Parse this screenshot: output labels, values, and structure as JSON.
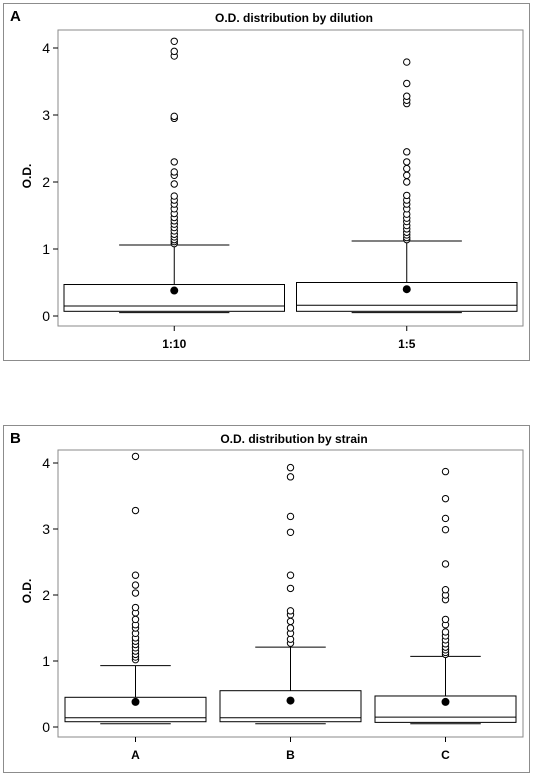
{
  "chart_data": [
    {
      "type": "boxplot",
      "panel_label": "A",
      "title": "O.D. distribution by dilution",
      "xlabel": "",
      "ylabel": "O.D.",
      "ylim": [
        0,
        4.2
      ],
      "yticks": [
        "0",
        "1",
        "2",
        "3",
        "4"
      ],
      "categories": [
        "1:10",
        "1:5"
      ],
      "boxes": [
        {
          "category": "1:10",
          "whisker_low": 0.05,
          "q1": 0.07,
          "median": 0.15,
          "q3": 0.47,
          "whisker_high": 1.06,
          "mean": 0.38,
          "outliers": [
            1.08,
            1.11,
            1.14,
            1.18,
            1.22,
            1.27,
            1.32,
            1.37,
            1.42,
            1.47,
            1.53,
            1.6,
            1.67,
            1.73,
            1.79,
            1.97,
            2.1,
            2.15,
            2.3,
            2.95,
            2.98,
            3.88,
            3.95,
            4.1
          ]
        },
        {
          "category": "1:5",
          "whisker_low": 0.05,
          "q1": 0.07,
          "median": 0.16,
          "q3": 0.5,
          "whisker_high": 1.12,
          "mean": 0.4,
          "outliers": [
            1.14,
            1.17,
            1.21,
            1.25,
            1.3,
            1.35,
            1.41,
            1.46,
            1.52,
            1.6,
            1.67,
            1.73,
            1.8,
            2.0,
            2.1,
            2.2,
            2.3,
            2.45,
            3.17,
            3.22,
            3.28,
            3.47,
            3.79
          ]
        }
      ]
    },
    {
      "type": "boxplot",
      "panel_label": "B",
      "title": "O.D. distribution by strain",
      "xlabel": "",
      "ylabel": "O.D.",
      "ylim": [
        0,
        4.2
      ],
      "yticks": [
        "0",
        "1",
        "2",
        "3",
        "4"
      ],
      "categories": [
        "A",
        "B",
        "C"
      ],
      "boxes": [
        {
          "category": "A",
          "whisker_low": 0.05,
          "q1": 0.08,
          "median": 0.14,
          "q3": 0.45,
          "whisker_high": 0.93,
          "mean": 0.38,
          "outliers": [
            1.02,
            1.06,
            1.1,
            1.15,
            1.2,
            1.25,
            1.3,
            1.35,
            1.42,
            1.5,
            1.55,
            1.63,
            1.73,
            1.81,
            2.03,
            2.15,
            2.3,
            3.28,
            4.1
          ]
        },
        {
          "category": "B",
          "whisker_low": 0.05,
          "q1": 0.08,
          "median": 0.14,
          "q3": 0.55,
          "whisker_high": 1.21,
          "mean": 0.4,
          "outliers": [
            1.27,
            1.33,
            1.42,
            1.5,
            1.6,
            1.7,
            1.76,
            2.1,
            2.3,
            2.95,
            3.19,
            3.79,
            3.93
          ]
        },
        {
          "category": "C",
          "whisker_low": 0.05,
          "q1": 0.07,
          "median": 0.15,
          "q3": 0.47,
          "whisker_high": 1.07,
          "mean": 0.38,
          "outliers": [
            1.1,
            1.13,
            1.17,
            1.21,
            1.26,
            1.32,
            1.38,
            1.44,
            1.55,
            1.63,
            1.93,
            2.0,
            2.08,
            2.47,
            2.99,
            3.16,
            3.46,
            3.87
          ]
        }
      ]
    }
  ]
}
